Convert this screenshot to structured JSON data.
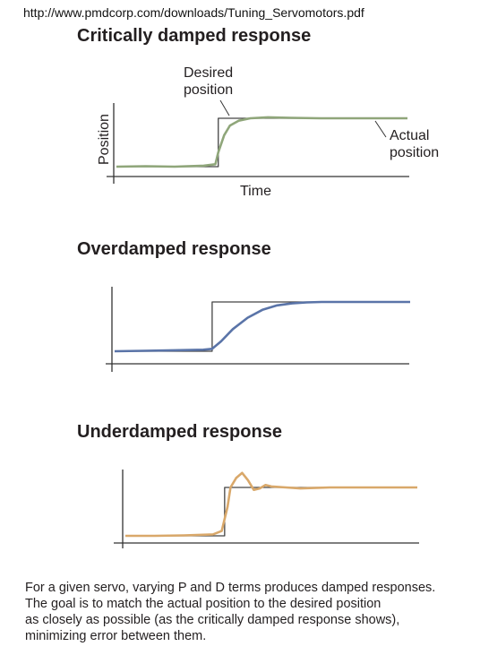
{
  "source_url": "http://www.pmdcorp.com/downloads/Tuning_Servomotors.pdf",
  "colors": {
    "critical": "#8fa67a",
    "over": "#5a74a8",
    "under": "#d9a86a",
    "axis": "#333333",
    "desired": "#444444"
  },
  "chart_data": [
    {
      "type": "line",
      "title": "Critically damped response",
      "xlabel": "Time",
      "ylabel": "Position",
      "annotations": [
        "Desired",
        "position",
        "Actual",
        "position"
      ],
      "step_time": 0.35,
      "x": [
        0,
        0.1,
        0.2,
        0.3,
        0.34,
        0.35,
        0.37,
        0.39,
        0.42,
        0.46,
        0.52,
        0.6,
        0.7,
        0.8,
        0.9,
        1.0
      ],
      "series": [
        {
          "role": "desired",
          "values": [
            0,
            0,
            0,
            0,
            0,
            1,
            1,
            1,
            1,
            1,
            1,
            1,
            1,
            1,
            1,
            1
          ]
        },
        {
          "role": "actual",
          "values": [
            0,
            0.01,
            0.0,
            0.02,
            0.05,
            0.3,
            0.65,
            0.85,
            0.95,
            1.0,
            1.02,
            1.01,
            1.0,
            1.0,
            1.0,
            1.0
          ]
        }
      ]
    },
    {
      "type": "line",
      "title": "Overdamped response",
      "step_time": 0.33,
      "x": [
        0,
        0.1,
        0.2,
        0.3,
        0.33,
        0.36,
        0.4,
        0.45,
        0.5,
        0.55,
        0.6,
        0.65,
        0.7,
        0.8,
        0.9,
        1.0
      ],
      "series": [
        {
          "role": "desired",
          "values": [
            0,
            0,
            0,
            0,
            0,
            1,
            1,
            1,
            1,
            1,
            1,
            1,
            1,
            1,
            1,
            1
          ]
        },
        {
          "role": "actual",
          "values": [
            0,
            0.01,
            0.02,
            0.03,
            0.05,
            0.2,
            0.45,
            0.68,
            0.84,
            0.93,
            0.97,
            0.99,
            1.0,
            1.0,
            1.0,
            1.0
          ]
        }
      ]
    },
    {
      "type": "line",
      "title": "Underdamped response",
      "step_time": 0.34,
      "x": [
        0,
        0.1,
        0.2,
        0.3,
        0.33,
        0.35,
        0.36,
        0.38,
        0.4,
        0.42,
        0.44,
        0.46,
        0.48,
        0.5,
        0.55,
        0.6,
        0.7,
        0.8,
        0.9,
        1.0
      ],
      "series": [
        {
          "role": "desired",
          "values": [
            0,
            0,
            0,
            0,
            0,
            1,
            1,
            1,
            1,
            1,
            1,
            1,
            1,
            1,
            1,
            1,
            1,
            1,
            1,
            1
          ]
        },
        {
          "role": "actual",
          "values": [
            0,
            0.0,
            0.01,
            0.03,
            0.1,
            0.6,
            1.0,
            1.2,
            1.3,
            1.15,
            0.95,
            0.98,
            1.05,
            1.02,
            1.0,
            0.98,
            1.0,
            1.0,
            1.0,
            1.0
          ]
        }
      ]
    }
  ],
  "caption": [
    "For a given servo, varying P and D terms produces damped responses.",
    "The goal is to match the actual position to the desired position",
    "as closely as possible (as the critically damped response shows),",
    "minimizing error between them."
  ]
}
